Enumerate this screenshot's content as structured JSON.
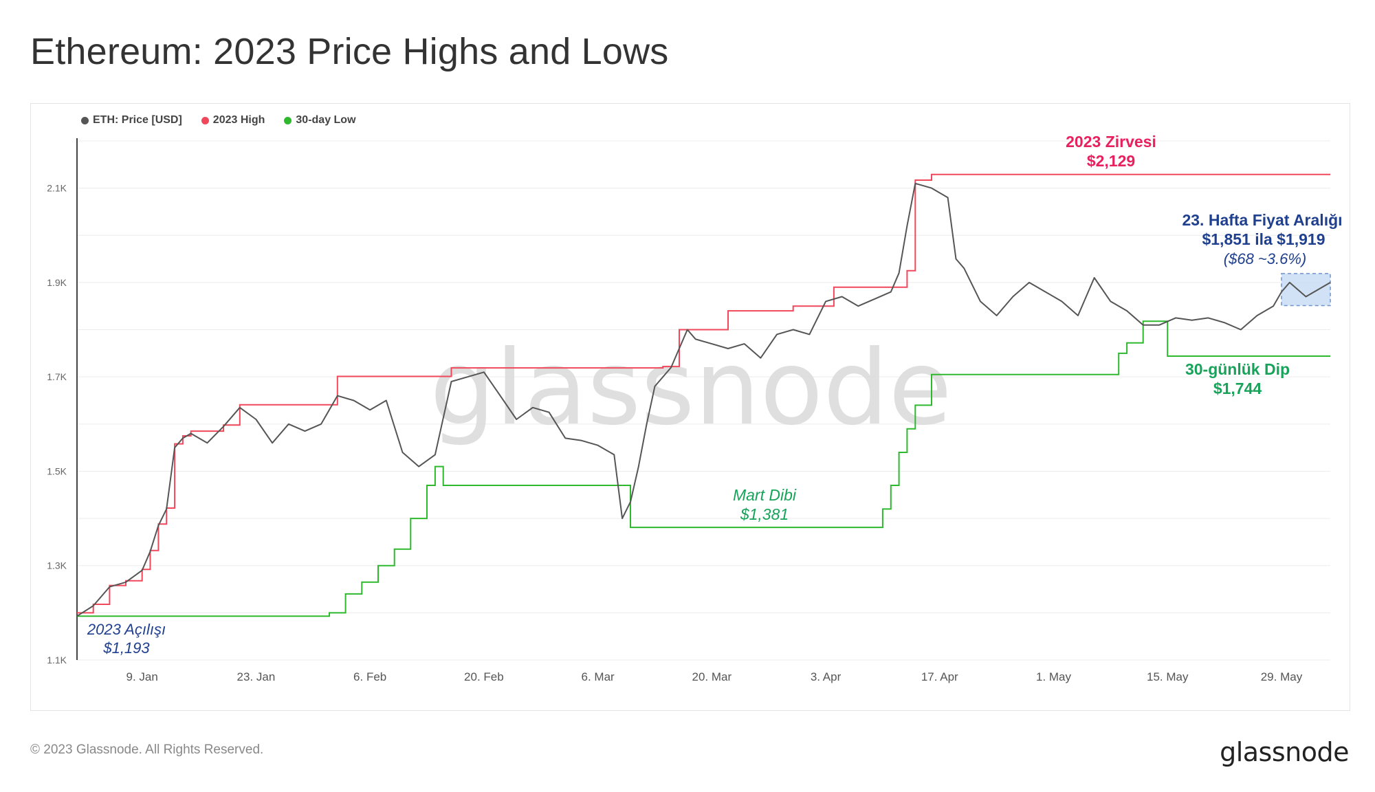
{
  "title": "Ethereum: 2023 Price Highs and Lows",
  "legend": [
    {
      "label": "ETH: Price [USD]",
      "color": "#555555"
    },
    {
      "label": "2023 High",
      "color": "#f0475a"
    },
    {
      "label": "30-day Low",
      "color": "#2db82d"
    }
  ],
  "watermark": "glassnode",
  "footer": {
    "copyright": "© 2023 Glassnode. All Rights Reserved.",
    "logo": "glassnode"
  },
  "annotations": {
    "open_label": "2023 Açılışı",
    "open_value": "$1,193",
    "high_label": "2023 Zirvesi",
    "high_value": "$2,129",
    "march_label": "Mart Dibi",
    "march_value": "$1,381",
    "week_label": "23. Hafta Fiyat Aralığı",
    "week_range": "$1,851 ila $1,919",
    "week_pct": "($68 ~3.6%)",
    "low30_label": "30-günlük Dip",
    "low30_value": "$1,744"
  },
  "chart_data": {
    "type": "line",
    "x_range": [
      "2023-01-01",
      "2023-06-04"
    ],
    "ylim": [
      1100,
      2200
    ],
    "y_ticks": [
      1100,
      1300,
      1500,
      1700,
      1900,
      2100
    ],
    "y_tick_labels": [
      "1.1K",
      "1.3K",
      "1.5K",
      "1.7K",
      "1.9K",
      "2.1K"
    ],
    "x_ticks": [
      "2023-01-09",
      "2023-01-23",
      "2023-02-06",
      "2023-02-20",
      "2023-03-06",
      "2023-03-20",
      "2023-04-03",
      "2023-04-17",
      "2023-05-01",
      "2023-05-15",
      "2023-05-29"
    ],
    "x_tick_labels": [
      "9. Jan",
      "23. Jan",
      "6. Feb",
      "20. Feb",
      "6. Mar",
      "20. Mar",
      "3. Apr",
      "17. Apr",
      "1. May",
      "15. May",
      "29. May"
    ],
    "highlight_range": {
      "x": [
        "2023-05-29",
        "2023-06-04"
      ],
      "y": [
        1851,
        1919
      ]
    },
    "series": [
      {
        "name": "ETH: Price [USD]",
        "color": "#555555",
        "x": [
          "2023-01-01",
          "2023-01-03",
          "2023-01-05",
          "2023-01-07",
          "2023-01-09",
          "2023-01-10",
          "2023-01-11",
          "2023-01-12",
          "2023-01-13",
          "2023-01-14",
          "2023-01-15",
          "2023-01-17",
          "2023-01-19",
          "2023-01-21",
          "2023-01-23",
          "2023-01-25",
          "2023-01-27",
          "2023-01-29",
          "2023-01-31",
          "2023-02-02",
          "2023-02-04",
          "2023-02-06",
          "2023-02-08",
          "2023-02-10",
          "2023-02-12",
          "2023-02-14",
          "2023-02-16",
          "2023-02-18",
          "2023-02-20",
          "2023-02-22",
          "2023-02-24",
          "2023-02-26",
          "2023-02-28",
          "2023-03-02",
          "2023-03-04",
          "2023-03-06",
          "2023-03-08",
          "2023-03-09",
          "2023-03-10",
          "2023-03-11",
          "2023-03-12",
          "2023-03-13",
          "2023-03-15",
          "2023-03-17",
          "2023-03-18",
          "2023-03-20",
          "2023-03-22",
          "2023-03-24",
          "2023-03-26",
          "2023-03-28",
          "2023-03-30",
          "2023-04-01",
          "2023-04-03",
          "2023-04-05",
          "2023-04-07",
          "2023-04-09",
          "2023-04-11",
          "2023-04-12",
          "2023-04-13",
          "2023-04-14",
          "2023-04-16",
          "2023-04-18",
          "2023-04-19",
          "2023-04-20",
          "2023-04-22",
          "2023-04-24",
          "2023-04-26",
          "2023-04-28",
          "2023-04-30",
          "2023-05-02",
          "2023-05-04",
          "2023-05-06",
          "2023-05-08",
          "2023-05-10",
          "2023-05-12",
          "2023-05-14",
          "2023-05-16",
          "2023-05-18",
          "2023-05-20",
          "2023-05-22",
          "2023-05-24",
          "2023-05-26",
          "2023-05-28",
          "2023-05-29",
          "2023-05-30",
          "2023-06-01",
          "2023-06-03",
          "2023-06-04"
        ],
        "values": [
          1193,
          1215,
          1255,
          1265,
          1290,
          1330,
          1385,
          1420,
          1550,
          1570,
          1580,
          1560,
          1595,
          1635,
          1610,
          1560,
          1600,
          1585,
          1600,
          1660,
          1650,
          1630,
          1650,
          1540,
          1510,
          1535,
          1690,
          1700,
          1710,
          1660,
          1610,
          1635,
          1625,
          1570,
          1565,
          1555,
          1535,
          1400,
          1435,
          1510,
          1600,
          1680,
          1720,
          1800,
          1780,
          1770,
          1760,
          1770,
          1740,
          1790,
          1800,
          1790,
          1860,
          1870,
          1850,
          1865,
          1880,
          1920,
          2020,
          2110,
          2100,
          2080,
          1950,
          1930,
          1860,
          1830,
          1870,
          1900,
          1880,
          1860,
          1830,
          1910,
          1860,
          1840,
          1810,
          1810,
          1825,
          1820,
          1825,
          1815,
          1800,
          1830,
          1850,
          1880,
          1900,
          1870,
          1890,
          1900
        ]
      },
      {
        "name": "2023 High",
        "color": "#f0475a",
        "x": [
          "2023-01-01",
          "2023-01-03",
          "2023-01-05",
          "2023-01-07",
          "2023-01-09",
          "2023-01-10",
          "2023-01-11",
          "2023-01-12",
          "2023-01-13",
          "2023-01-14",
          "2023-01-15",
          "2023-01-19",
          "2023-01-21",
          "2023-02-02",
          "2023-02-16",
          "2023-03-14",
          "2023-03-16",
          "2023-03-22",
          "2023-03-30",
          "2023-04-04",
          "2023-04-13",
          "2023-04-14",
          "2023-04-16",
          "2023-06-04"
        ],
        "values": [
          1200,
          1218,
          1258,
          1268,
          1292,
          1332,
          1388,
          1422,
          1558,
          1575,
          1585,
          1598,
          1641,
          1701,
          1719,
          1722,
          1800,
          1840,
          1850,
          1890,
          1925,
          2117,
          2129,
          2129
        ]
      },
      {
        "name": "30-day Low",
        "color": "#2db82d",
        "x": [
          "2023-01-01",
          "2023-01-31",
          "2023-02-01",
          "2023-02-03",
          "2023-02-05",
          "2023-02-07",
          "2023-02-09",
          "2023-02-11",
          "2023-02-13",
          "2023-02-14",
          "2023-02-15",
          "2023-03-09",
          "2023-03-10",
          "2023-04-09",
          "2023-04-10",
          "2023-04-11",
          "2023-04-12",
          "2023-04-13",
          "2023-04-14",
          "2023-04-16",
          "2023-05-08",
          "2023-05-09",
          "2023-05-10",
          "2023-05-12",
          "2023-05-14",
          "2023-05-15",
          "2023-06-04"
        ],
        "values": [
          1193,
          1193,
          1200,
          1240,
          1265,
          1300,
          1335,
          1400,
          1470,
          1510,
          1470,
          1470,
          1381,
          1381,
          1420,
          1470,
          1540,
          1590,
          1640,
          1705,
          1705,
          1750,
          1772,
          1818,
          1818,
          1744,
          1744
        ]
      }
    ]
  }
}
